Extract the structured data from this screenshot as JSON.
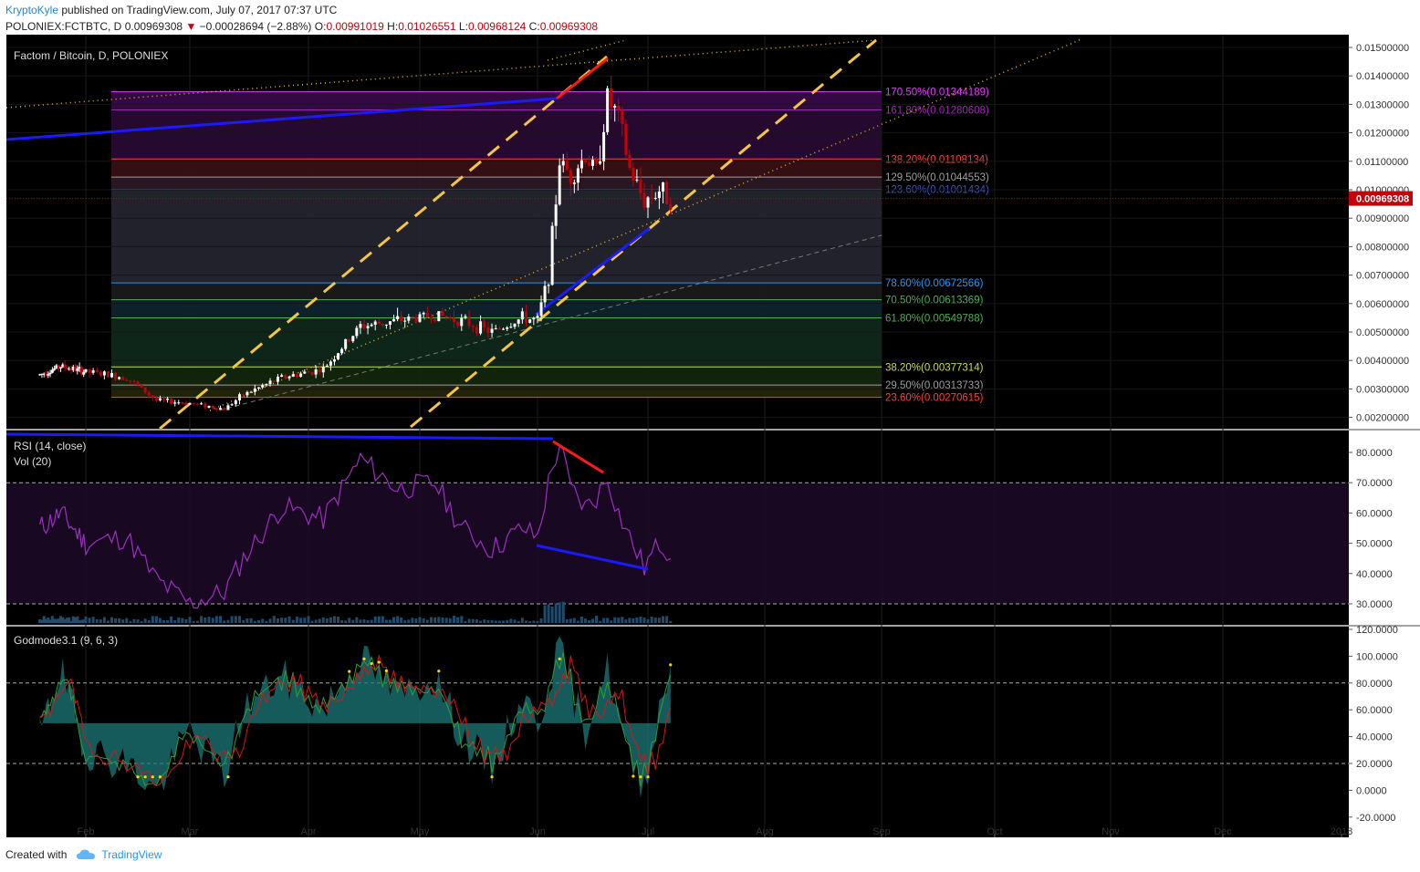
{
  "header": {
    "author": "KryptoKyle",
    "published": " published on TradingView.com, July 07, 2017 07:37 UTC",
    "symbol": "POLONIEX:FCTBTC, D ",
    "last": "0.00969308",
    "change_arrow": "▼",
    "change": " −0.00028694 (−2.88%) ",
    "o_label": "O:",
    "o": "0.00991019",
    "h_label": " H:",
    "h": "0.01026551",
    "l_label": " L:",
    "l": "0.00968124",
    "c_label": " C:",
    "c": "0.00969308"
  },
  "footer": {
    "created_with": "Created with",
    "brand": "TradingView"
  },
  "colors": {
    "background": "#000000",
    "up": "#ffffff",
    "down": "#c4000b",
    "rsi": "#9b2fbf",
    "trend_blue": "#1a1aff",
    "trend_red": "#ff1a1a",
    "fib_dash": "#f5c542",
    "dotted": "#e0b030",
    "price_tag": "#c4000b"
  },
  "chart_data": [
    {
      "type": "candlestick",
      "title": "Factom / Bitcoin, D, POLONIEX",
      "x_ticks": [
        "Feb",
        "Mar",
        "Apr",
        "May",
        "Jun",
        "Jul",
        "Aug",
        "Sep",
        "Oct",
        "Nov",
        "Dec",
        "2018"
      ],
      "y_ticks": [
        "0.01500000",
        "0.01400000",
        "0.01300000",
        "0.01200000",
        "0.01100000",
        "0.01000000",
        "0.00900000",
        "0.00800000",
        "0.00700000",
        "0.00600000",
        "0.00500000",
        "0.00400000",
        "0.00300000",
        "0.00200000"
      ],
      "ylim": [
        0.0015,
        0.0156
      ],
      "last_price_label": "0.00969308",
      "last_price": 0.00969308,
      "fib_levels": [
        {
          "label": "170.50%(0.01344189)",
          "value": 0.01344189,
          "color": "#e040fb"
        },
        {
          "label": "161.80%(0.01280608)",
          "value": 0.01280608,
          "color": "#9c27b0"
        },
        {
          "label": "138.20%(0.01108134)",
          "value": 0.01108134,
          "color": "#f44336"
        },
        {
          "label": "129.50%(0.01044553)",
          "value": 0.01044553,
          "color": "#9e9e9e"
        },
        {
          "label": "123.60%(0.01001434)",
          "value": 0.01001434,
          "color": "#3f51b5"
        },
        {
          "label": "78.60%(0.00672566)",
          "value": 0.00672566,
          "color": "#2196f3"
        },
        {
          "label": "70.50%(0.00613369)",
          "value": 0.00613369,
          "color": "#4caf50"
        },
        {
          "label": "61.80%(0.00549788)",
          "value": 0.00549788,
          "color": "#4caf50"
        },
        {
          "label": "38.20%(0.00377314)",
          "value": 0.00377314,
          "color": "#cddc39"
        },
        {
          "label": "29.50%(0.00313733)",
          "value": 0.00313733,
          "color": "#9e9e9e"
        },
        {
          "label": "23.60%(0.00270615)",
          "value": 0.00270615,
          "color": "#f44336"
        }
      ],
      "price_path": [
        [
          "2017-01-10",
          0.0035
        ],
        [
          "2017-01-20",
          0.0038
        ],
        [
          "2017-02-01",
          0.0036
        ],
        [
          "2017-02-12",
          0.0034
        ],
        [
          "2017-02-20",
          0.0026
        ],
        [
          "2017-03-01",
          0.0025
        ],
        [
          "2017-03-10",
          0.0023
        ],
        [
          "2017-03-15",
          0.0028
        ],
        [
          "2017-03-25",
          0.0034
        ],
        [
          "2017-04-05",
          0.0037
        ],
        [
          "2017-04-15",
          0.0052
        ],
        [
          "2017-04-25",
          0.0054
        ],
        [
          "2017-05-05",
          0.0056
        ],
        [
          "2017-05-12",
          0.0054
        ],
        [
          "2017-05-20",
          0.005
        ],
        [
          "2017-05-28",
          0.0055
        ],
        [
          "2017-06-01",
          0.0054
        ],
        [
          "2017-06-04",
          0.007
        ],
        [
          "2017-06-07",
          0.011
        ],
        [
          "2017-06-10",
          0.0105
        ],
        [
          "2017-06-14",
          0.0112
        ],
        [
          "2017-06-17",
          0.0106
        ],
        [
          "2017-06-20",
          0.0132
        ],
        [
          "2017-06-23",
          0.0125
        ],
        [
          "2017-06-26",
          0.0107
        ],
        [
          "2017-06-30",
          0.0096
        ],
        [
          "2017-07-04",
          0.01
        ],
        [
          "2017-07-07",
          0.0097
        ]
      ]
    },
    {
      "type": "line",
      "title": "RSI (14, close)",
      "subtitle": "Vol (20)",
      "y_ticks": [
        "80.0000",
        "70.0000",
        "60.0000",
        "50.0000",
        "40.0000",
        "30.0000"
      ],
      "ylim": [
        27,
        84
      ],
      "bands": [
        30,
        70
      ],
      "rsi_path": [
        [
          "2017-01-10",
          55
        ],
        [
          "2017-01-20",
          60
        ],
        [
          "2017-02-01",
          50
        ],
        [
          "2017-02-12",
          52
        ],
        [
          "2017-02-20",
          38
        ],
        [
          "2017-03-01",
          30
        ],
        [
          "2017-03-10",
          34
        ],
        [
          "2017-03-15",
          45
        ],
        [
          "2017-03-25",
          62
        ],
        [
          "2017-04-05",
          58
        ],
        [
          "2017-04-15",
          78
        ],
        [
          "2017-04-25",
          68
        ],
        [
          "2017-05-05",
          70
        ],
        [
          "2017-05-12",
          55
        ],
        [
          "2017-05-20",
          48
        ],
        [
          "2017-05-28",
          55
        ],
        [
          "2017-06-01",
          52
        ],
        [
          "2017-06-04",
          70
        ],
        [
          "2017-06-07",
          83
        ],
        [
          "2017-06-10",
          68
        ],
        [
          "2017-06-14",
          62
        ],
        [
          "2017-06-17",
          65
        ],
        [
          "2017-06-20",
          72
        ],
        [
          "2017-06-23",
          60
        ],
        [
          "2017-06-26",
          52
        ],
        [
          "2017-06-30",
          42
        ],
        [
          "2017-07-04",
          50
        ],
        [
          "2017-07-07",
          47
        ]
      ]
    },
    {
      "type": "area",
      "title": "Godmode3.1 (9, 6, 3)",
      "y_ticks": [
        "120.0000",
        "100.0000",
        "80.0000",
        "60.0000",
        "40.0000",
        "20.0000",
        "0.0000",
        "-20.0000"
      ],
      "ylim": [
        -20,
        120
      ],
      "bands": [
        20,
        80
      ],
      "midline": 50,
      "gm_path": [
        [
          "2017-01-10",
          40
        ],
        [
          "2017-01-20",
          90
        ],
        [
          "2017-02-01",
          30
        ],
        [
          "2017-02-12",
          20
        ],
        [
          "2017-02-20",
          0
        ],
        [
          "2017-03-01",
          45
        ],
        [
          "2017-03-10",
          10
        ],
        [
          "2017-03-15",
          60
        ],
        [
          "2017-03-25",
          85
        ],
        [
          "2017-04-05",
          60
        ],
        [
          "2017-04-15",
          100
        ],
        [
          "2017-04-25",
          70
        ],
        [
          "2017-05-05",
          85
        ],
        [
          "2017-05-12",
          40
        ],
        [
          "2017-05-20",
          15
        ],
        [
          "2017-05-28",
          70
        ],
        [
          "2017-06-01",
          50
        ],
        [
          "2017-06-04",
          80
        ],
        [
          "2017-06-07",
          110
        ],
        [
          "2017-06-10",
          75
        ],
        [
          "2017-06-14",
          45
        ],
        [
          "2017-06-17",
          70
        ],
        [
          "2017-06-20",
          90
        ],
        [
          "2017-06-23",
          55
        ],
        [
          "2017-06-26",
          20
        ],
        [
          "2017-06-30",
          5
        ],
        [
          "2017-07-04",
          60
        ],
        [
          "2017-07-07",
          95
        ]
      ]
    }
  ]
}
